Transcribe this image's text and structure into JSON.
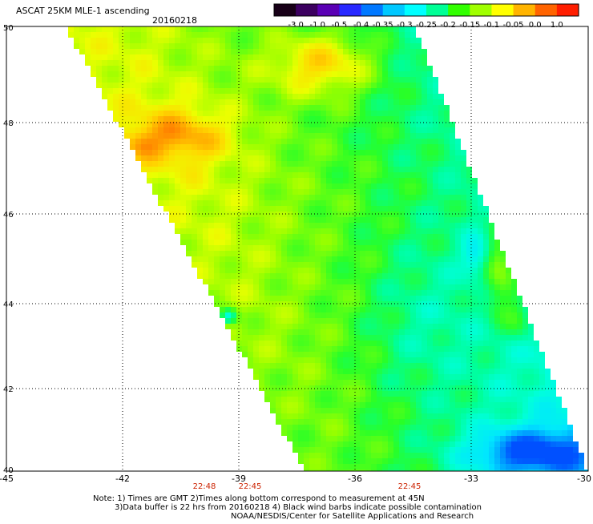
{
  "header": {
    "product": "ASCAT 25KM MLE-1 ascending",
    "date": "20160218"
  },
  "colorbar": {
    "labels": [
      "-3.0",
      "-1.0",
      "-0.5",
      "-0.4",
      "-0.35",
      "-0.3",
      "-0.25",
      "-0.2",
      "-0.15",
      "-0.1",
      "-0.05",
      "0.0",
      "1.0"
    ],
    "colors": [
      "#180018",
      "#3c0060",
      "#5a00b4",
      "#2828ff",
      "#0078ff",
      "#00c8ff",
      "#00ffff",
      "#00ff96",
      "#32ff00",
      "#a0ff00",
      "#ffff00",
      "#ffb400",
      "#ff6400",
      "#ff1e00"
    ]
  },
  "axes": {
    "x_ticks": [
      "-45",
      "-42",
      "-39",
      "-36",
      "-33",
      "-30"
    ],
    "y_ticks": [
      "50",
      "48",
      "46",
      "44",
      "42",
      "40"
    ]
  },
  "times": [
    "22:48",
    "22:45",
    "22:45"
  ],
  "notes": [
    "Note: 1) Times are GMT 2)Times along bottom correspond to measurement at 45N",
    "3)Data buffer is 22 hrs from 20160218 4) Black wind barbs indicate possible contamination",
    "NOAA/NESDIS/Center for Satellite Applications and Research"
  ],
  "colors": {
    "time_text": "#cc2200",
    "grid": "#000000"
  }
}
